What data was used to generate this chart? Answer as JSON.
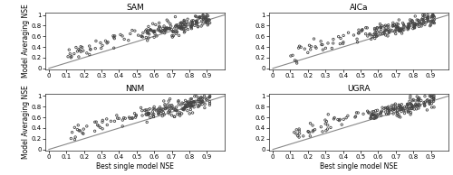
{
  "titles": [
    "SAM",
    "AICa",
    "NNM",
    "UGRA"
  ],
  "xlabel": "Best single model NSE",
  "ylabel": "Model Averaging NSE",
  "xlim": [
    -0.02,
    1.0
  ],
  "ylim": [
    -0.02,
    1.05
  ],
  "xticks": [
    0,
    0.1,
    0.2,
    0.3,
    0.4,
    0.5,
    0.6,
    0.7,
    0.8,
    0.9
  ],
  "yticks": [
    0,
    0.2,
    0.4,
    0.6,
    0.8,
    1
  ],
  "marker": "o",
  "marker_s": 3.5,
  "marker_facecolor": "none",
  "marker_edgecolor": "#444444",
  "marker_linewidth": 0.6,
  "line_color": "#888888",
  "line_width": 0.8,
  "title_fontsize": 6.5,
  "label_fontsize": 5.5,
  "tick_fontsize": 5,
  "figure_bgcolor": "#ffffff"
}
